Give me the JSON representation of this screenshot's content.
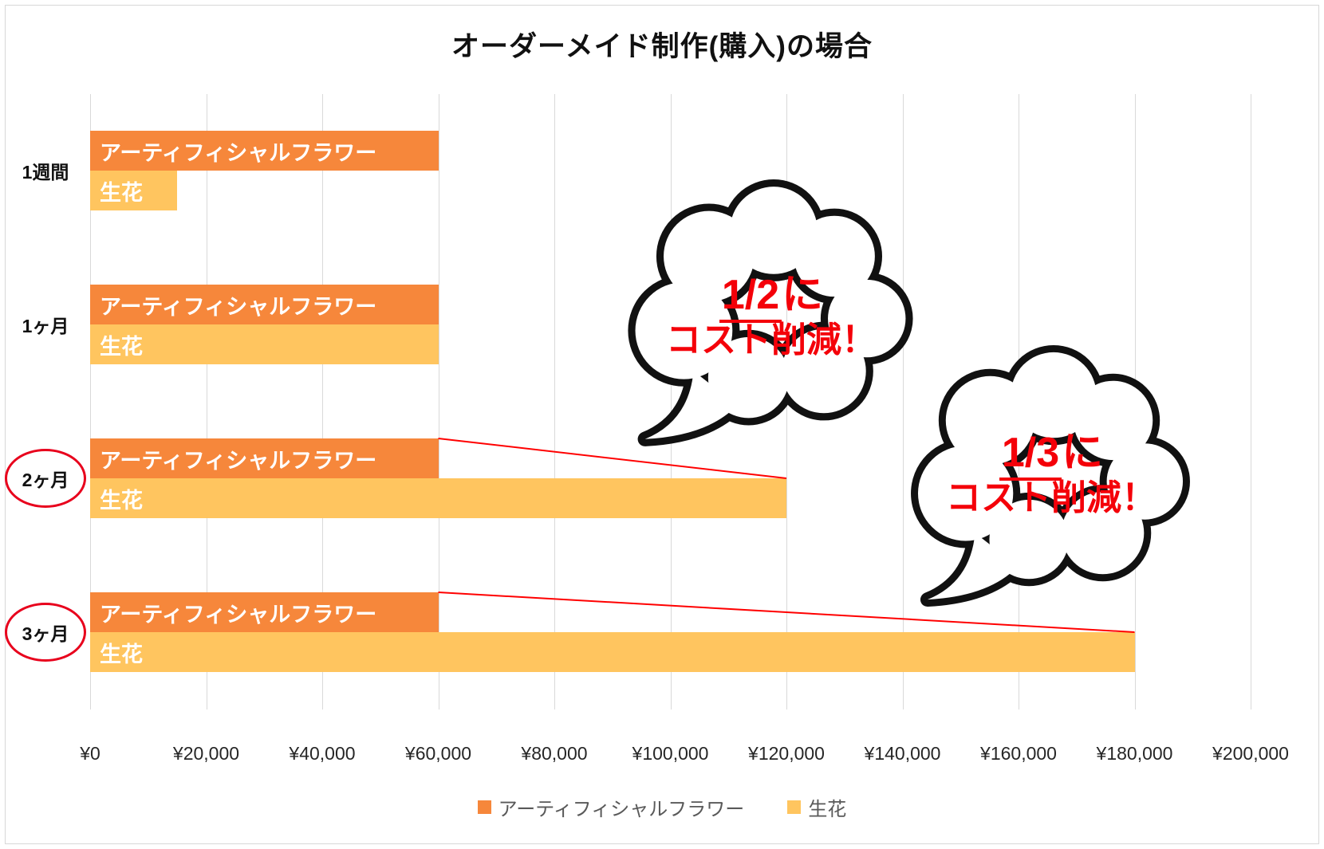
{
  "title": "オーダーメイド制作(購入)の場合",
  "chart_data": {
    "type": "bar",
    "orientation": "horizontal",
    "title": "オーダーメイド制作(購入)の場合",
    "categories": [
      "1週間",
      "1ヶ月",
      "2ヶ月",
      "3ヶ月"
    ],
    "series": [
      {
        "name": "アーティフィシャルフラワー",
        "color": "#F6873B",
        "values": [
          60000,
          60000,
          60000,
          60000
        ]
      },
      {
        "name": "生花",
        "color": "#FFC55F",
        "values": [
          15000,
          60000,
          120000,
          180000
        ]
      }
    ],
    "xlim": [
      0,
      200000
    ],
    "x_tick_values": [
      0,
      20000,
      40000,
      60000,
      80000,
      100000,
      120000,
      140000,
      160000,
      180000,
      200000
    ],
    "x_ticks": [
      "¥0",
      "¥20,000",
      "¥40,000",
      "¥60,000",
      "¥80,000",
      "¥100,000",
      "¥120,000",
      "¥140,000",
      "¥160,000",
      "¥180,000",
      "¥200,000"
    ],
    "grid": true,
    "legend_position": "bottom",
    "bar_value_labels": "series name shown in white inside each bar",
    "circled_categories": [
      "2ヶ月",
      "3ヶ月"
    ],
    "connectors": [
      {
        "category": "2ヶ月",
        "from_value": 60000,
        "to_value": 120000,
        "color": "#FF0000"
      },
      {
        "category": "3ヶ月",
        "from_value": 60000,
        "to_value": 180000,
        "color": "#FF0000"
      }
    ]
  },
  "annotations": {
    "bubbles": [
      {
        "underlined_part": "1/2",
        "suffix": "に",
        "bottom_line": "コスト削減！",
        "text_color": "#F40009"
      },
      {
        "underlined_part": "1/3",
        "suffix": "に",
        "bottom_line": "コスト削減！",
        "text_color": "#F40009"
      }
    ]
  },
  "legend": {
    "items": [
      {
        "label": "アーティフィシャルフラワー",
        "color": "#F6873B"
      },
      {
        "label": "生花",
        "color": "#FFC55F"
      }
    ]
  },
  "colors": {
    "artificial_flower_bar": "#F6873B",
    "fresh_flower_bar": "#FFC55F",
    "gridline": "#D9D9D9",
    "highlight_red": "#E8001C",
    "connector_red": "#FF0000",
    "bubble_outline": "#111111",
    "legend_text": "#595959"
  }
}
